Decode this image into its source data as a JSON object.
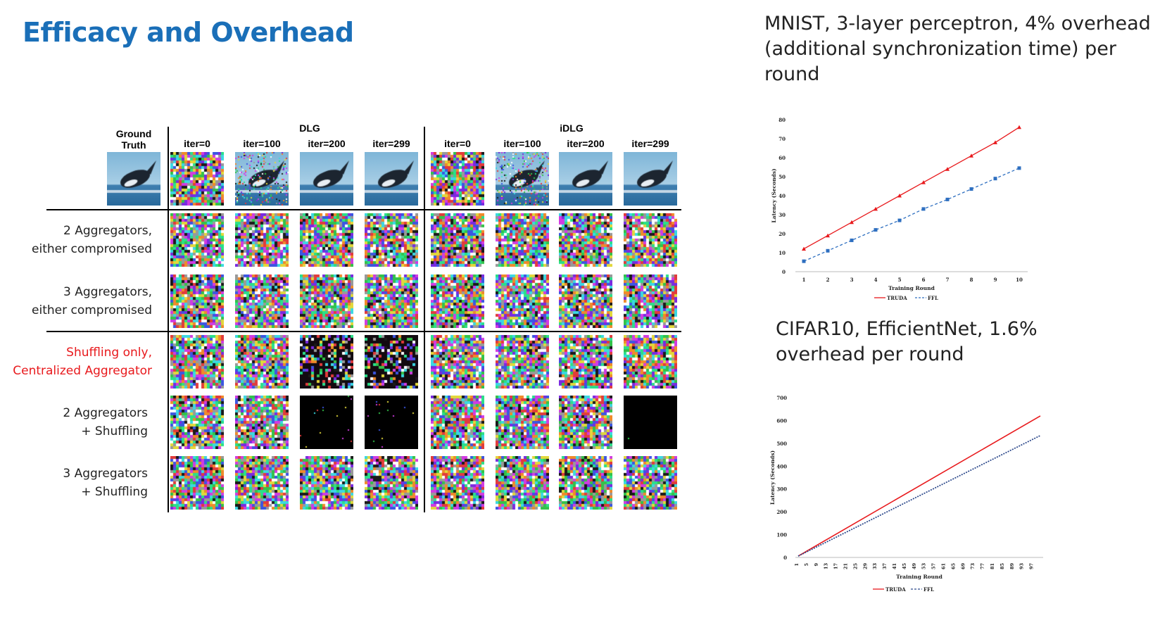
{
  "slide": {
    "title": "Efficacy and Overhead",
    "caption_mnist": "MNIST, 3-layer perceptron, 4% overhead (additional synchronization time) per round",
    "caption_cifar": "CIFAR10, EfficientNet, 1.6% overhead per round"
  },
  "grid": {
    "ground_truth_label": "Ground Truth",
    "groups": [
      {
        "name": "DLG",
        "iters": [
          "iter=0",
          "iter=100",
          "iter=200",
          "iter=299"
        ]
      },
      {
        "name": "iDLG",
        "iters": [
          "iter=0",
          "iter=100",
          "iter=200",
          "iter=299"
        ]
      }
    ],
    "rows": [
      {
        "label": "2 Aggregators,\neither compromised",
        "color": "#222222",
        "tiles": [
          "noise",
          "noise",
          "noise",
          "noise",
          "noise",
          "noise",
          "noise",
          "noise"
        ]
      },
      {
        "label": "3 Aggregators,\neither compromised",
        "color": "#222222",
        "tiles": [
          "noise",
          "noise",
          "noise",
          "noise",
          "noise",
          "noise",
          "noise",
          "noise"
        ]
      },
      {
        "label": "Shuffling only,\nCentralized Aggregator",
        "color": "#e8191c",
        "tiles": [
          "noise",
          "noise",
          "dark",
          "dark",
          "noise",
          "noise",
          "noise",
          "noise"
        ]
      },
      {
        "label": "2 Aggregators\n+ Shuffling",
        "color": "#222222",
        "tiles": [
          "noise",
          "noise",
          "black-sparse",
          "black-sparse",
          "noise",
          "noise",
          "noise",
          "black"
        ]
      },
      {
        "label": "3 Aggregators\n+ Shuffling",
        "color": "#222222",
        "tiles": [
          "noise",
          "noise",
          "noise",
          "noise",
          "noise",
          "noise",
          "noise",
          "noise"
        ]
      }
    ],
    "top_row_tiles": [
      "noise",
      "whale-noisy",
      "whale",
      "whale",
      "noise",
      "whale-noisy",
      "whale",
      "whale"
    ]
  },
  "chart_data": [
    {
      "type": "line",
      "title": "",
      "xlabel": "Training Round",
      "ylabel": "Latency (Seconds)",
      "x": [
        1,
        2,
        3,
        4,
        5,
        6,
        7,
        8,
        9,
        10
      ],
      "ylim": [
        0,
        80
      ],
      "yticks": [
        0,
        10,
        20,
        30,
        40,
        50,
        60,
        70,
        80
      ],
      "legend_position": "bottom",
      "series": [
        {
          "name": "TRUDA",
          "color": "#e8191c",
          "values": [
            12,
            19,
            26,
            33,
            40,
            47,
            54,
            61,
            68,
            76
          ]
        },
        {
          "name": "FFL",
          "color": "#2e6fc0",
          "values": [
            5.5,
            11,
            16.5,
            22,
            27,
            33,
            38,
            43.5,
            49,
            54.5
          ]
        }
      ]
    },
    {
      "type": "line",
      "title": "",
      "xlabel": "Training Round",
      "ylabel": "Latency (Seconds)",
      "xticks": [
        1,
        5,
        9,
        13,
        17,
        21,
        25,
        29,
        33,
        37,
        41,
        45,
        49,
        53,
        57,
        61,
        65,
        69,
        73,
        77,
        81,
        85,
        89,
        93,
        97
      ],
      "xlim": [
        1,
        100
      ],
      "ylim": [
        0,
        700
      ],
      "yticks": [
        0,
        100,
        200,
        300,
        400,
        500,
        600,
        700
      ],
      "legend_position": "bottom",
      "series": [
        {
          "name": "TRUDA",
          "color": "#e8191c",
          "x": [
            1,
            100
          ],
          "values": [
            6,
            620
          ]
        },
        {
          "name": "FFL",
          "color": "#2e4a8c",
          "x": [
            1,
            100
          ],
          "values": [
            6,
            534
          ]
        }
      ]
    }
  ]
}
